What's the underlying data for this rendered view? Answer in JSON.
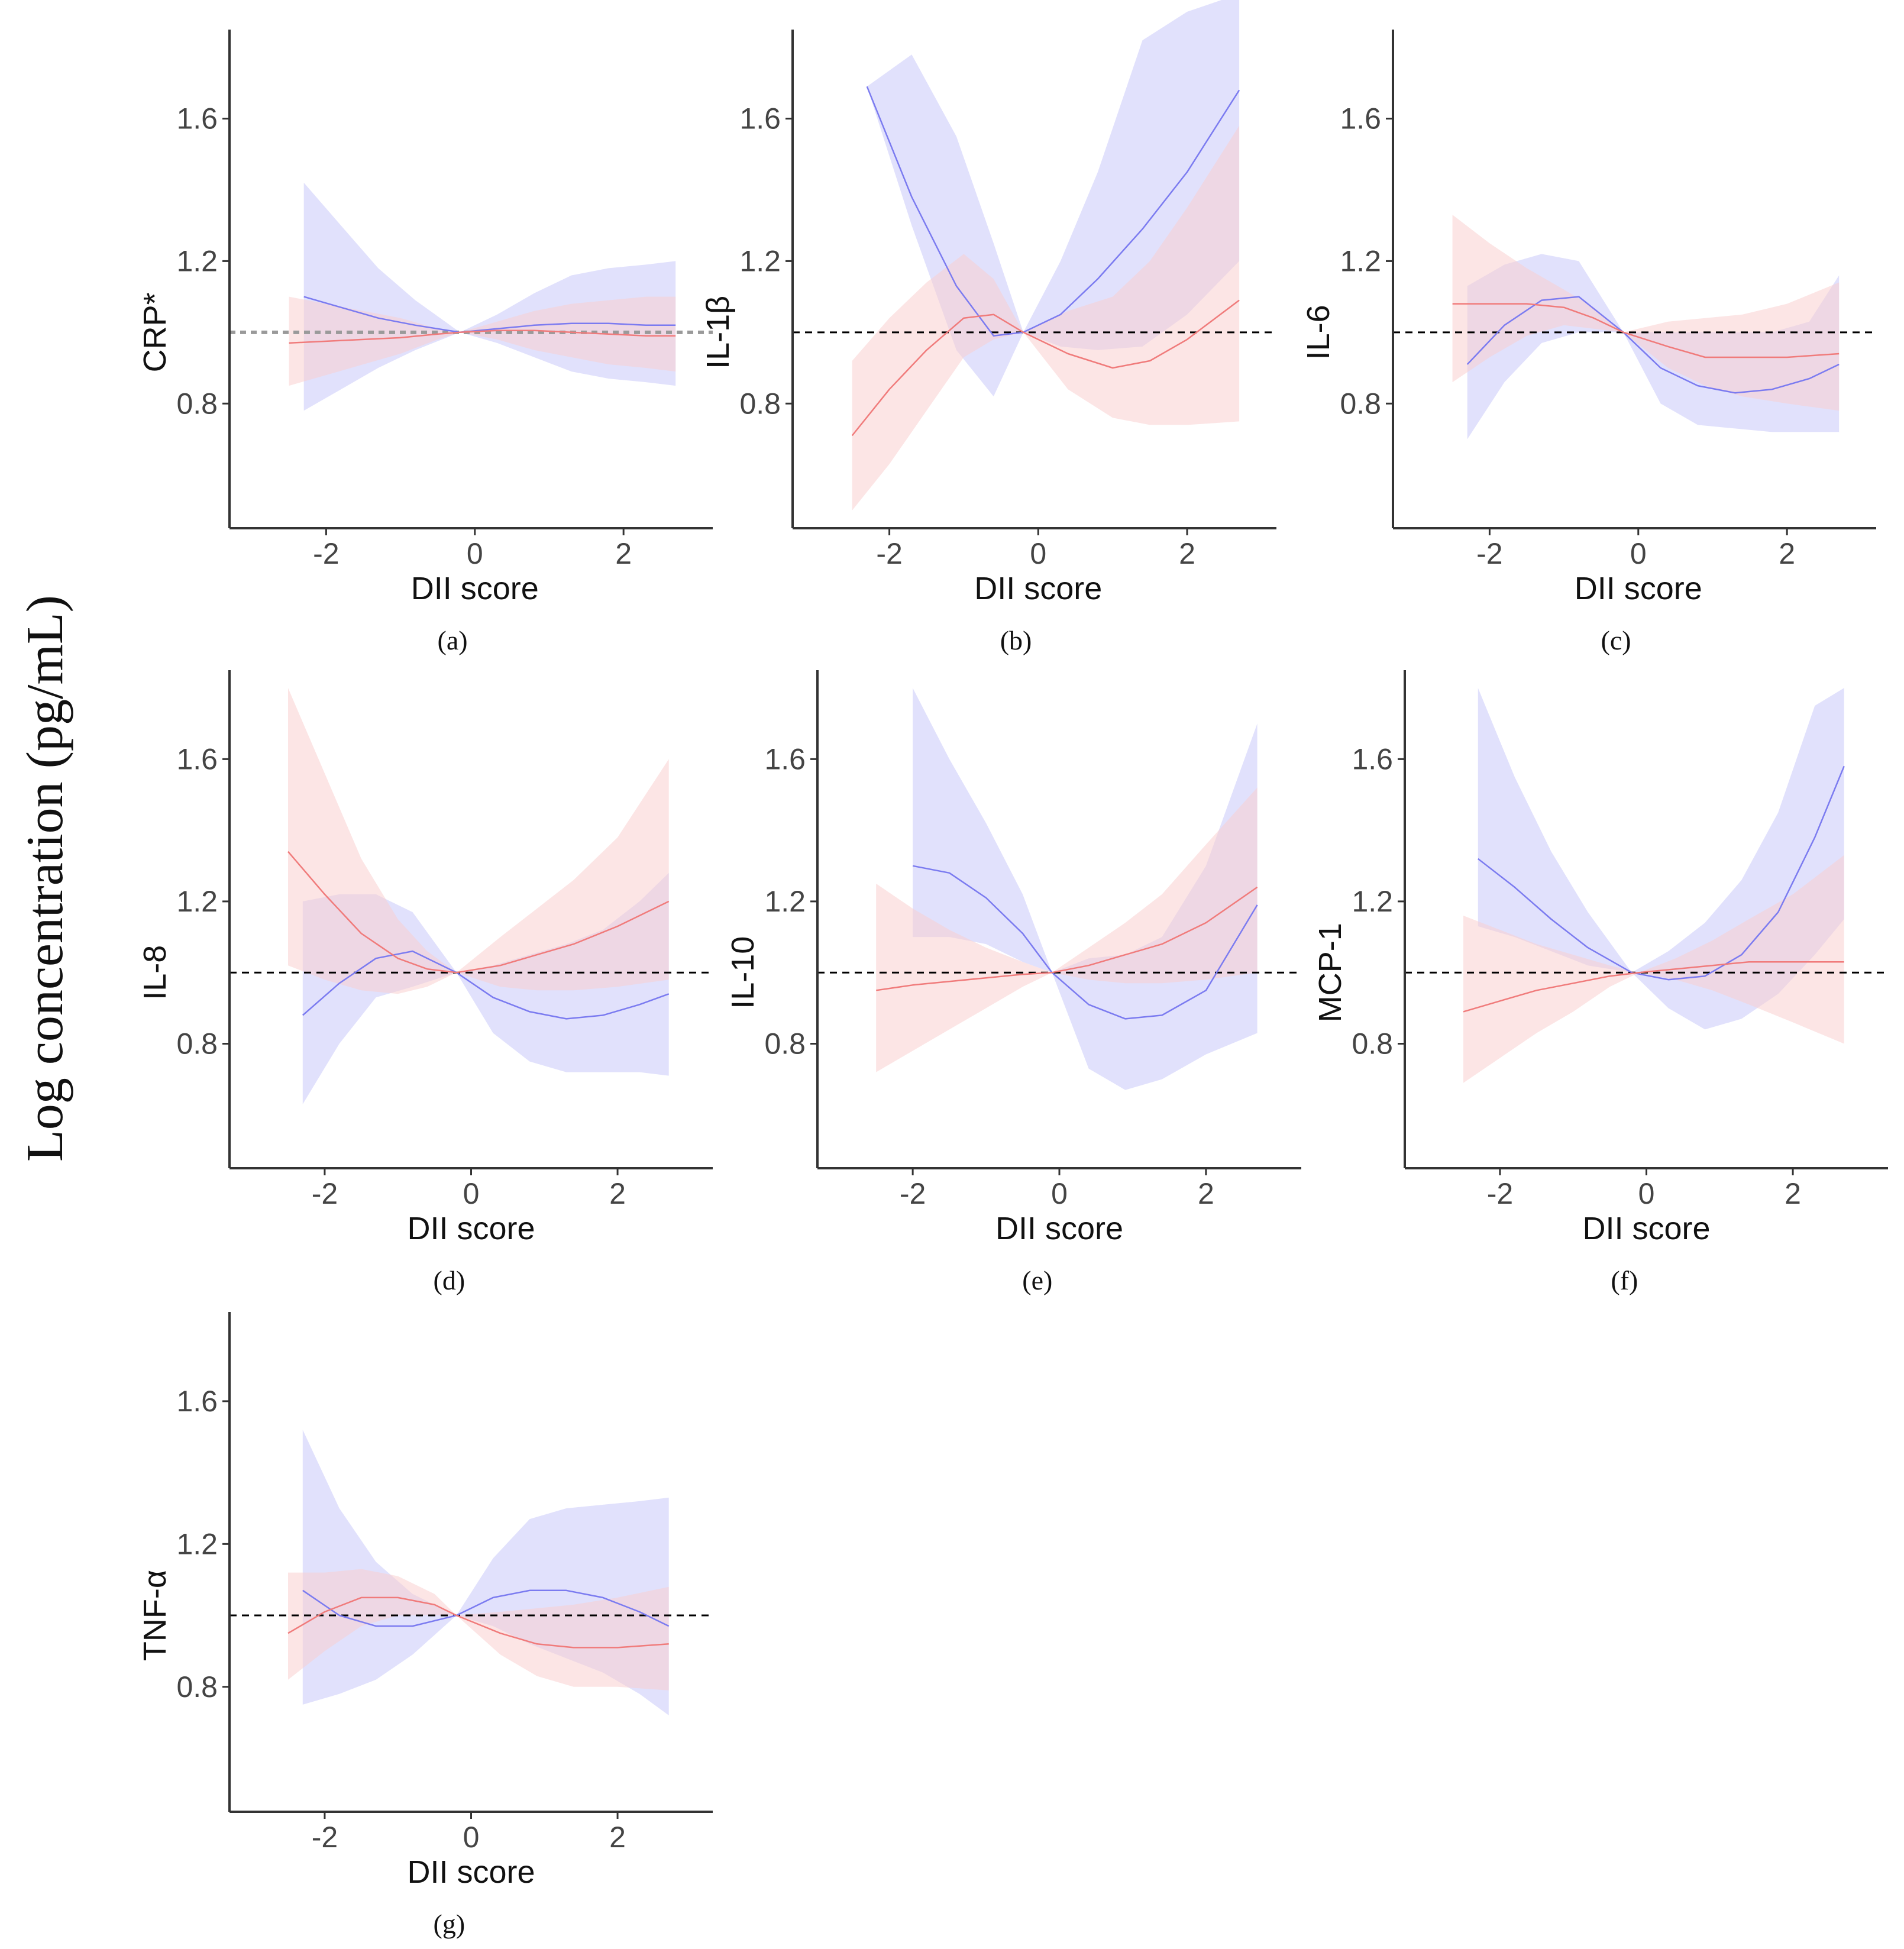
{
  "figure": {
    "global_ylabel": "Log concentration (pg/mL)",
    "colors": {
      "series_blue": "#7b7bf0",
      "series_red": "#f07b7b",
      "band_blue": "#c8c8fa",
      "band_red": "#fad0d0",
      "reference_line": "#000000",
      "reference_line_crp": "#9a9a9a",
      "axis": "#333333"
    }
  },
  "chart_data": [
    {
      "type": "line",
      "caption": "(a)",
      "ylabel": "CRP*",
      "xlabel": "DII score",
      "xlim": [
        -3.3,
        3.2
      ],
      "ylim": [
        0.45,
        1.85
      ],
      "xticks": [
        "-2",
        "0",
        "2"
      ],
      "yticks": [
        "0.8",
        "1.2",
        "1.6"
      ],
      "reference_y": 1.0,
      "series": [
        {
          "name": "blue",
          "x": [
            -2.3,
            -1.8,
            -1.3,
            -0.8,
            -0.2,
            0.3,
            0.8,
            1.3,
            1.8,
            2.3,
            2.7
          ],
          "y": [
            1.1,
            1.07,
            1.04,
            1.02,
            1.0,
            1.01,
            1.02,
            1.025,
            1.025,
            1.02,
            1.02
          ],
          "lower": [
            0.78,
            0.84,
            0.9,
            0.95,
            1.0,
            0.97,
            0.93,
            0.89,
            0.87,
            0.86,
            0.85
          ],
          "upper": [
            1.42,
            1.3,
            1.18,
            1.09,
            1.0,
            1.05,
            1.11,
            1.16,
            1.18,
            1.19,
            1.2
          ]
        },
        {
          "name": "red",
          "x": [
            -2.5,
            -2.0,
            -1.5,
            -1.0,
            -0.5,
            -0.2,
            0.3,
            0.8,
            1.3,
            1.8,
            2.3,
            2.7
          ],
          "y": [
            0.97,
            0.975,
            0.98,
            0.985,
            0.995,
            1.0,
            1.005,
            1.005,
            1.0,
            0.995,
            0.99,
            0.99
          ],
          "lower": [
            0.85,
            0.88,
            0.91,
            0.94,
            0.98,
            1.0,
            0.98,
            0.95,
            0.93,
            0.91,
            0.9,
            0.89
          ],
          "upper": [
            1.1,
            1.08,
            1.06,
            1.04,
            1.01,
            1.0,
            1.03,
            1.06,
            1.08,
            1.09,
            1.1,
            1.1
          ]
        }
      ]
    },
    {
      "type": "line",
      "caption": "(b)",
      "ylabel": "IL-1β",
      "xlabel": "DII score",
      "xlim": [
        -3.3,
        3.2
      ],
      "ylim": [
        0.45,
        1.85
      ],
      "xticks": [
        "-2",
        "0",
        "2"
      ],
      "yticks": [
        "0.8",
        "1.2",
        "1.6"
      ],
      "reference_y": 1.0,
      "series": [
        {
          "name": "blue",
          "x": [
            -2.3,
            -1.7,
            -1.1,
            -0.6,
            -0.2,
            0.3,
            0.8,
            1.4,
            2.0,
            2.7
          ],
          "y": [
            1.69,
            1.38,
            1.13,
            0.99,
            1.0,
            1.05,
            1.15,
            1.29,
            1.45,
            1.68
          ],
          "lower": [
            1.69,
            1.3,
            0.95,
            0.82,
            1.0,
            0.96,
            0.95,
            0.96,
            1.05,
            1.2
          ],
          "upper": [
            1.69,
            1.78,
            1.55,
            1.25,
            1.0,
            1.2,
            1.45,
            1.82,
            1.9,
            1.95
          ]
        },
        {
          "name": "red",
          "x": [
            -2.5,
            -2.0,
            -1.5,
            -1.0,
            -0.6,
            -0.2,
            0.4,
            1.0,
            1.5,
            2.0,
            2.7
          ],
          "y": [
            0.71,
            0.84,
            0.95,
            1.04,
            1.05,
            1.0,
            0.94,
            0.9,
            0.92,
            0.98,
            1.09
          ],
          "lower": [
            0.5,
            0.63,
            0.78,
            0.93,
            0.98,
            1.0,
            0.84,
            0.76,
            0.74,
            0.74,
            0.75
          ],
          "upper": [
            0.92,
            1.04,
            1.14,
            1.22,
            1.15,
            1.0,
            1.06,
            1.1,
            1.2,
            1.35,
            1.58
          ]
        }
      ]
    },
    {
      "type": "line",
      "caption": "(c)",
      "ylabel": "IL-6",
      "xlabel": "DII score",
      "xlim": [
        -3.3,
        3.2
      ],
      "ylim": [
        0.45,
        1.85
      ],
      "xticks": [
        "-2",
        "0",
        "2"
      ],
      "yticks": [
        "0.8",
        "1.2",
        "1.6"
      ],
      "reference_y": 1.0,
      "series": [
        {
          "name": "blue",
          "x": [
            -2.3,
            -1.8,
            -1.3,
            -0.8,
            -0.2,
            0.3,
            0.8,
            1.3,
            1.8,
            2.3,
            2.7
          ],
          "y": [
            0.91,
            1.02,
            1.09,
            1.1,
            1.0,
            0.9,
            0.85,
            0.83,
            0.84,
            0.87,
            0.91
          ],
          "lower": [
            0.7,
            0.86,
            0.97,
            1.0,
            1.0,
            0.8,
            0.74,
            0.73,
            0.72,
            0.72,
            0.72
          ],
          "upper": [
            1.13,
            1.19,
            1.22,
            1.2,
            1.0,
            1.0,
            1.0,
            1.0,
            1.0,
            1.03,
            1.16
          ]
        },
        {
          "name": "red",
          "x": [
            -2.5,
            -2.0,
            -1.5,
            -1.0,
            -0.6,
            -0.2,
            0.4,
            0.9,
            1.4,
            2.0,
            2.7
          ],
          "y": [
            1.08,
            1.08,
            1.08,
            1.07,
            1.04,
            1.0,
            0.96,
            0.93,
            0.93,
            0.93,
            0.94
          ],
          "lower": [
            0.86,
            0.93,
            0.99,
            1.02,
            1.01,
            1.0,
            0.9,
            0.85,
            0.82,
            0.8,
            0.78
          ],
          "upper": [
            1.33,
            1.25,
            1.18,
            1.12,
            1.07,
            1.0,
            1.03,
            1.04,
            1.05,
            1.08,
            1.14
          ]
        }
      ]
    },
    {
      "type": "line",
      "caption": "(d)",
      "ylabel": "IL-8",
      "xlabel": "DII score",
      "xlim": [
        -3.3,
        3.3
      ],
      "ylim": [
        0.45,
        1.85
      ],
      "xticks": [
        "-2",
        "0",
        "2"
      ],
      "yticks": [
        "0.8",
        "1.2",
        "1.6"
      ],
      "reference_y": 1.0,
      "series": [
        {
          "name": "blue",
          "x": [
            -2.3,
            -1.8,
            -1.3,
            -0.8,
            -0.2,
            0.3,
            0.8,
            1.3,
            1.8,
            2.3,
            2.7
          ],
          "y": [
            0.88,
            0.97,
            1.04,
            1.06,
            1.0,
            0.93,
            0.89,
            0.87,
            0.88,
            0.91,
            0.94
          ],
          "lower": [
            0.63,
            0.8,
            0.93,
            0.96,
            1.0,
            0.83,
            0.75,
            0.72,
            0.72,
            0.72,
            0.71
          ],
          "upper": [
            1.2,
            1.22,
            1.22,
            1.17,
            1.0,
            1.02,
            1.05,
            1.08,
            1.12,
            1.2,
            1.28
          ]
        },
        {
          "name": "red",
          "x": [
            -2.5,
            -2.0,
            -1.5,
            -1.0,
            -0.6,
            -0.2,
            0.4,
            0.9,
            1.4,
            2.0,
            2.7
          ],
          "y": [
            1.34,
            1.22,
            1.11,
            1.04,
            1.01,
            1.0,
            1.02,
            1.05,
            1.08,
            1.13,
            1.2
          ],
          "lower": [
            1.02,
            0.98,
            0.95,
            0.94,
            0.96,
            1.0,
            0.96,
            0.95,
            0.95,
            0.96,
            0.98
          ],
          "upper": [
            1.8,
            1.56,
            1.32,
            1.15,
            1.06,
            1.0,
            1.1,
            1.18,
            1.26,
            1.38,
            1.6
          ]
        }
      ]
    },
    {
      "type": "line",
      "caption": "(e)",
      "ylabel": "IL-10",
      "xlabel": "DII score",
      "xlim": [
        -3.3,
        3.3
      ],
      "ylim": [
        0.45,
        1.85
      ],
      "xticks": [
        "-2",
        "0",
        "2"
      ],
      "yticks": [
        "0.8",
        "1.2",
        "1.6"
      ],
      "reference_y": 1.0,
      "series": [
        {
          "name": "blue",
          "x": [
            -2.0,
            -1.5,
            -1.0,
            -0.5,
            -0.1,
            0.4,
            0.9,
            1.4,
            2.0,
            2.7
          ],
          "y": [
            1.3,
            1.28,
            1.21,
            1.11,
            1.0,
            0.91,
            0.87,
            0.88,
            0.95,
            1.19
          ],
          "lower": [
            1.1,
            1.1,
            1.08,
            1.03,
            1.0,
            0.73,
            0.67,
            0.7,
            0.77,
            0.83
          ],
          "upper": [
            1.8,
            1.6,
            1.42,
            1.22,
            1.0,
            1.04,
            1.05,
            1.1,
            1.3,
            1.7
          ]
        },
        {
          "name": "red",
          "x": [
            -2.5,
            -2.0,
            -1.5,
            -1.0,
            -0.5,
            -0.1,
            0.4,
            0.9,
            1.4,
            2.0,
            2.7
          ],
          "y": [
            0.95,
            0.965,
            0.975,
            0.985,
            0.995,
            1.0,
            1.02,
            1.05,
            1.08,
            1.14,
            1.24
          ],
          "lower": [
            0.72,
            0.78,
            0.84,
            0.9,
            0.96,
            1.0,
            0.98,
            0.97,
            0.97,
            0.98,
            1.0
          ],
          "upper": [
            1.25,
            1.18,
            1.12,
            1.07,
            1.03,
            1.0,
            1.07,
            1.14,
            1.22,
            1.36,
            1.52
          ]
        }
      ]
    },
    {
      "type": "line",
      "caption": "(f)",
      "ylabel": "MCP-1",
      "xlabel": "DII score",
      "xlim": [
        -3.3,
        3.3
      ],
      "ylim": [
        0.45,
        1.85
      ],
      "xticks": [
        "-2",
        "0",
        "2"
      ],
      "yticks": [
        "0.8",
        "1.2",
        "1.6"
      ],
      "reference_y": 1.0,
      "series": [
        {
          "name": "blue",
          "x": [
            -2.3,
            -1.8,
            -1.3,
            -0.8,
            -0.2,
            0.3,
            0.8,
            1.3,
            1.8,
            2.3,
            2.7
          ],
          "y": [
            1.32,
            1.24,
            1.15,
            1.07,
            1.0,
            0.98,
            0.99,
            1.05,
            1.17,
            1.38,
            1.58
          ],
          "lower": [
            1.13,
            1.1,
            1.06,
            1.02,
            1.0,
            0.9,
            0.84,
            0.87,
            0.94,
            1.05,
            1.15
          ],
          "upper": [
            1.8,
            1.55,
            1.34,
            1.17,
            1.0,
            1.06,
            1.14,
            1.26,
            1.45,
            1.75,
            1.8
          ]
        },
        {
          "name": "red",
          "x": [
            -2.5,
            -2.0,
            -1.5,
            -1.0,
            -0.5,
            -0.1,
            0.4,
            0.9,
            1.4,
            2.0,
            2.7
          ],
          "y": [
            0.89,
            0.92,
            0.95,
            0.97,
            0.99,
            1.0,
            1.01,
            1.02,
            1.03,
            1.03,
            1.03
          ],
          "lower": [
            0.69,
            0.76,
            0.83,
            0.89,
            0.96,
            1.0,
            0.98,
            0.95,
            0.91,
            0.86,
            0.8
          ],
          "upper": [
            1.16,
            1.12,
            1.08,
            1.05,
            1.02,
            1.0,
            1.04,
            1.09,
            1.15,
            1.22,
            1.33
          ]
        }
      ]
    },
    {
      "type": "line",
      "caption": "(g)",
      "ylabel": "TNF-α",
      "xlabel": "DII score",
      "xlim": [
        -3.3,
        3.3
      ],
      "ylim": [
        0.45,
        1.85
      ],
      "xticks": [
        "-2",
        "0",
        "2"
      ],
      "yticks": [
        "0.8",
        "1.2",
        "1.6"
      ],
      "reference_y": 1.0,
      "series": [
        {
          "name": "blue",
          "x": [
            -2.3,
            -1.8,
            -1.3,
            -0.8,
            -0.2,
            0.3,
            0.8,
            1.3,
            1.8,
            2.3,
            2.7
          ],
          "y": [
            1.07,
            1.0,
            0.97,
            0.97,
            1.0,
            1.05,
            1.07,
            1.07,
            1.05,
            1.01,
            0.97
          ],
          "lower": [
            0.75,
            0.78,
            0.82,
            0.89,
            1.0,
            0.97,
            0.92,
            0.88,
            0.84,
            0.78,
            0.72
          ],
          "upper": [
            1.52,
            1.3,
            1.15,
            1.06,
            1.0,
            1.16,
            1.27,
            1.3,
            1.31,
            1.32,
            1.33
          ]
        },
        {
          "name": "red",
          "x": [
            -2.5,
            -2.0,
            -1.5,
            -1.0,
            -0.5,
            -0.2,
            0.4,
            0.9,
            1.4,
            2.0,
            2.7
          ],
          "y": [
            0.95,
            1.01,
            1.05,
            1.05,
            1.03,
            1.0,
            0.95,
            0.92,
            0.91,
            0.91,
            0.92
          ],
          "lower": [
            0.82,
            0.9,
            0.97,
            1.0,
            1.0,
            1.0,
            0.89,
            0.83,
            0.8,
            0.8,
            0.79
          ],
          "upper": [
            1.12,
            1.12,
            1.13,
            1.11,
            1.06,
            1.0,
            1.01,
            1.02,
            1.03,
            1.05,
            1.08
          ]
        }
      ]
    }
  ]
}
